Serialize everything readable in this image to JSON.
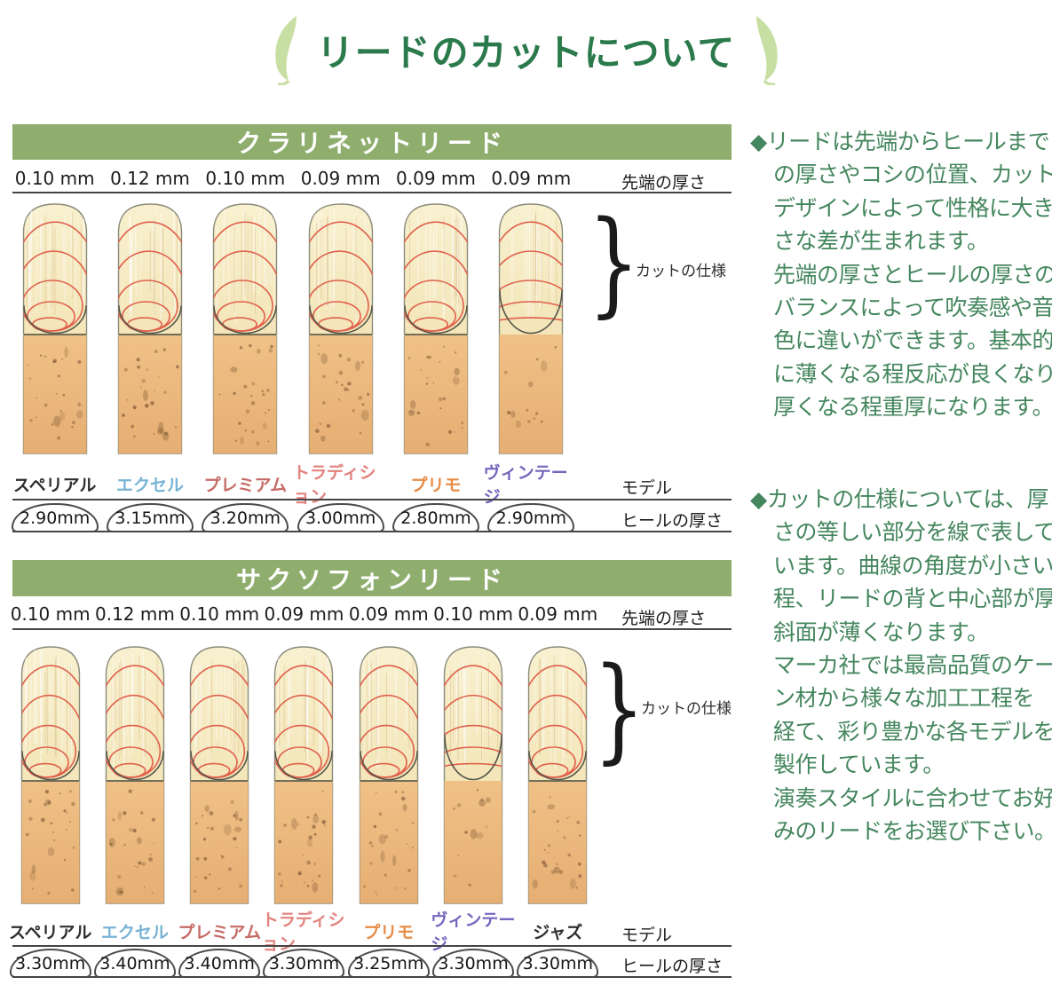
{
  "title": "リードのカットについて",
  "palette": {
    "banner_green": "#8FAE6E",
    "title_green": "#2B7A4C",
    "note_green": "#44865D",
    "arc_red": "#E0604C",
    "rule_gray": "#454545",
    "vamp_cream": "#F3E4B2",
    "bark_tan": "#EBB97D"
  },
  "sections": [
    {
      "header": "クラリネットリード",
      "tip_label": "先端の厚さ",
      "model_label": "モデル",
      "heel_label": "ヒールの厚さ",
      "cut_label": "カットの仕様",
      "brace": "}",
      "reeds": [
        {
          "tip": "0.10 mm",
          "model": "スペリアル",
          "model_color": "#2e2e2e",
          "heel": "2.90mm",
          "cut": "nested"
        },
        {
          "tip": "0.12 mm",
          "model": "エクセル",
          "model_color": "#79B3D6",
          "heel": "3.15mm",
          "cut": "nested"
        },
        {
          "tip": "0.10 mm",
          "model": "プレミアム",
          "model_color": "#C66A64",
          "heel": "3.20mm",
          "cut": "nested"
        },
        {
          "tip": "0.09 mm",
          "model": "トラディション",
          "model_color": "#E2837E",
          "heel": "3.00mm",
          "cut": "nested"
        },
        {
          "tip": "0.09 mm",
          "model": "プリモ",
          "model_color": "#E78B46",
          "heel": "2.80mm",
          "cut": "nested"
        },
        {
          "tip": "0.09 mm",
          "model": "ヴィンテージ",
          "model_color": "#7467BE",
          "heel": "2.90mm",
          "cut": "wide"
        }
      ]
    },
    {
      "header": "サクソフォンリード",
      "tip_label": "先端の厚さ",
      "model_label": "モデル",
      "heel_label": "ヒールの厚さ",
      "cut_label": "カットの仕様",
      "brace": "}",
      "reeds": [
        {
          "tip": "0.10 mm",
          "model": "スペリアル",
          "model_color": "#2e2e2e",
          "heel": "3.30mm",
          "cut": "nested"
        },
        {
          "tip": "0.12 mm",
          "model": "エクセル",
          "model_color": "#79B3D6",
          "heel": "3.40mm",
          "cut": "nested"
        },
        {
          "tip": "0.10 mm",
          "model": "プレミアム",
          "model_color": "#C66A64",
          "heel": "3.40mm",
          "cut": "nested"
        },
        {
          "tip": "0.09 mm",
          "model": "トラディション",
          "model_color": "#E2837E",
          "heel": "3.30mm",
          "cut": "nested"
        },
        {
          "tip": "0.09 mm",
          "model": "プリモ",
          "model_color": "#E78B46",
          "heel": "3.25mm",
          "cut": "nested"
        },
        {
          "tip": "0.10 mm",
          "model": "ヴィンテージ",
          "model_color": "#7467BE",
          "heel": "3.30mm",
          "cut": "wide"
        },
        {
          "tip": "0.09 mm",
          "model": "ジャズ",
          "model_color": "#2e2e2e",
          "heel": "3.30mm",
          "cut": "nested"
        }
      ]
    }
  ],
  "notes": [
    {
      "lines": [
        "◆リードは先端からヒールまで",
        "の厚さやコシの位置、カットの",
        "デザインによって性格に大き",
        "さな差が生まれます。",
        "先端の厚さとヒールの厚さの",
        "バランスによって吹奏感や音",
        "色に違いができます。基本的",
        "に薄くなる程反応が良くなり、",
        "厚くなる程重厚になります。"
      ]
    },
    {
      "lines": [
        "◆カットの仕様については、厚",
        "さの等しい部分を線で表して",
        "います。曲線の角度が小さい",
        "程、リードの背と中心部が厚く",
        "斜面が薄くなります。",
        "マーカ社では最高品質のケー",
        "ン材から様々な加工工程を",
        "経て、彩り豊かな各モデルを",
        "製作しています。",
        "演奏スタイルに合わせてお好",
        "みのリードをお選び下さい。"
      ]
    }
  ]
}
